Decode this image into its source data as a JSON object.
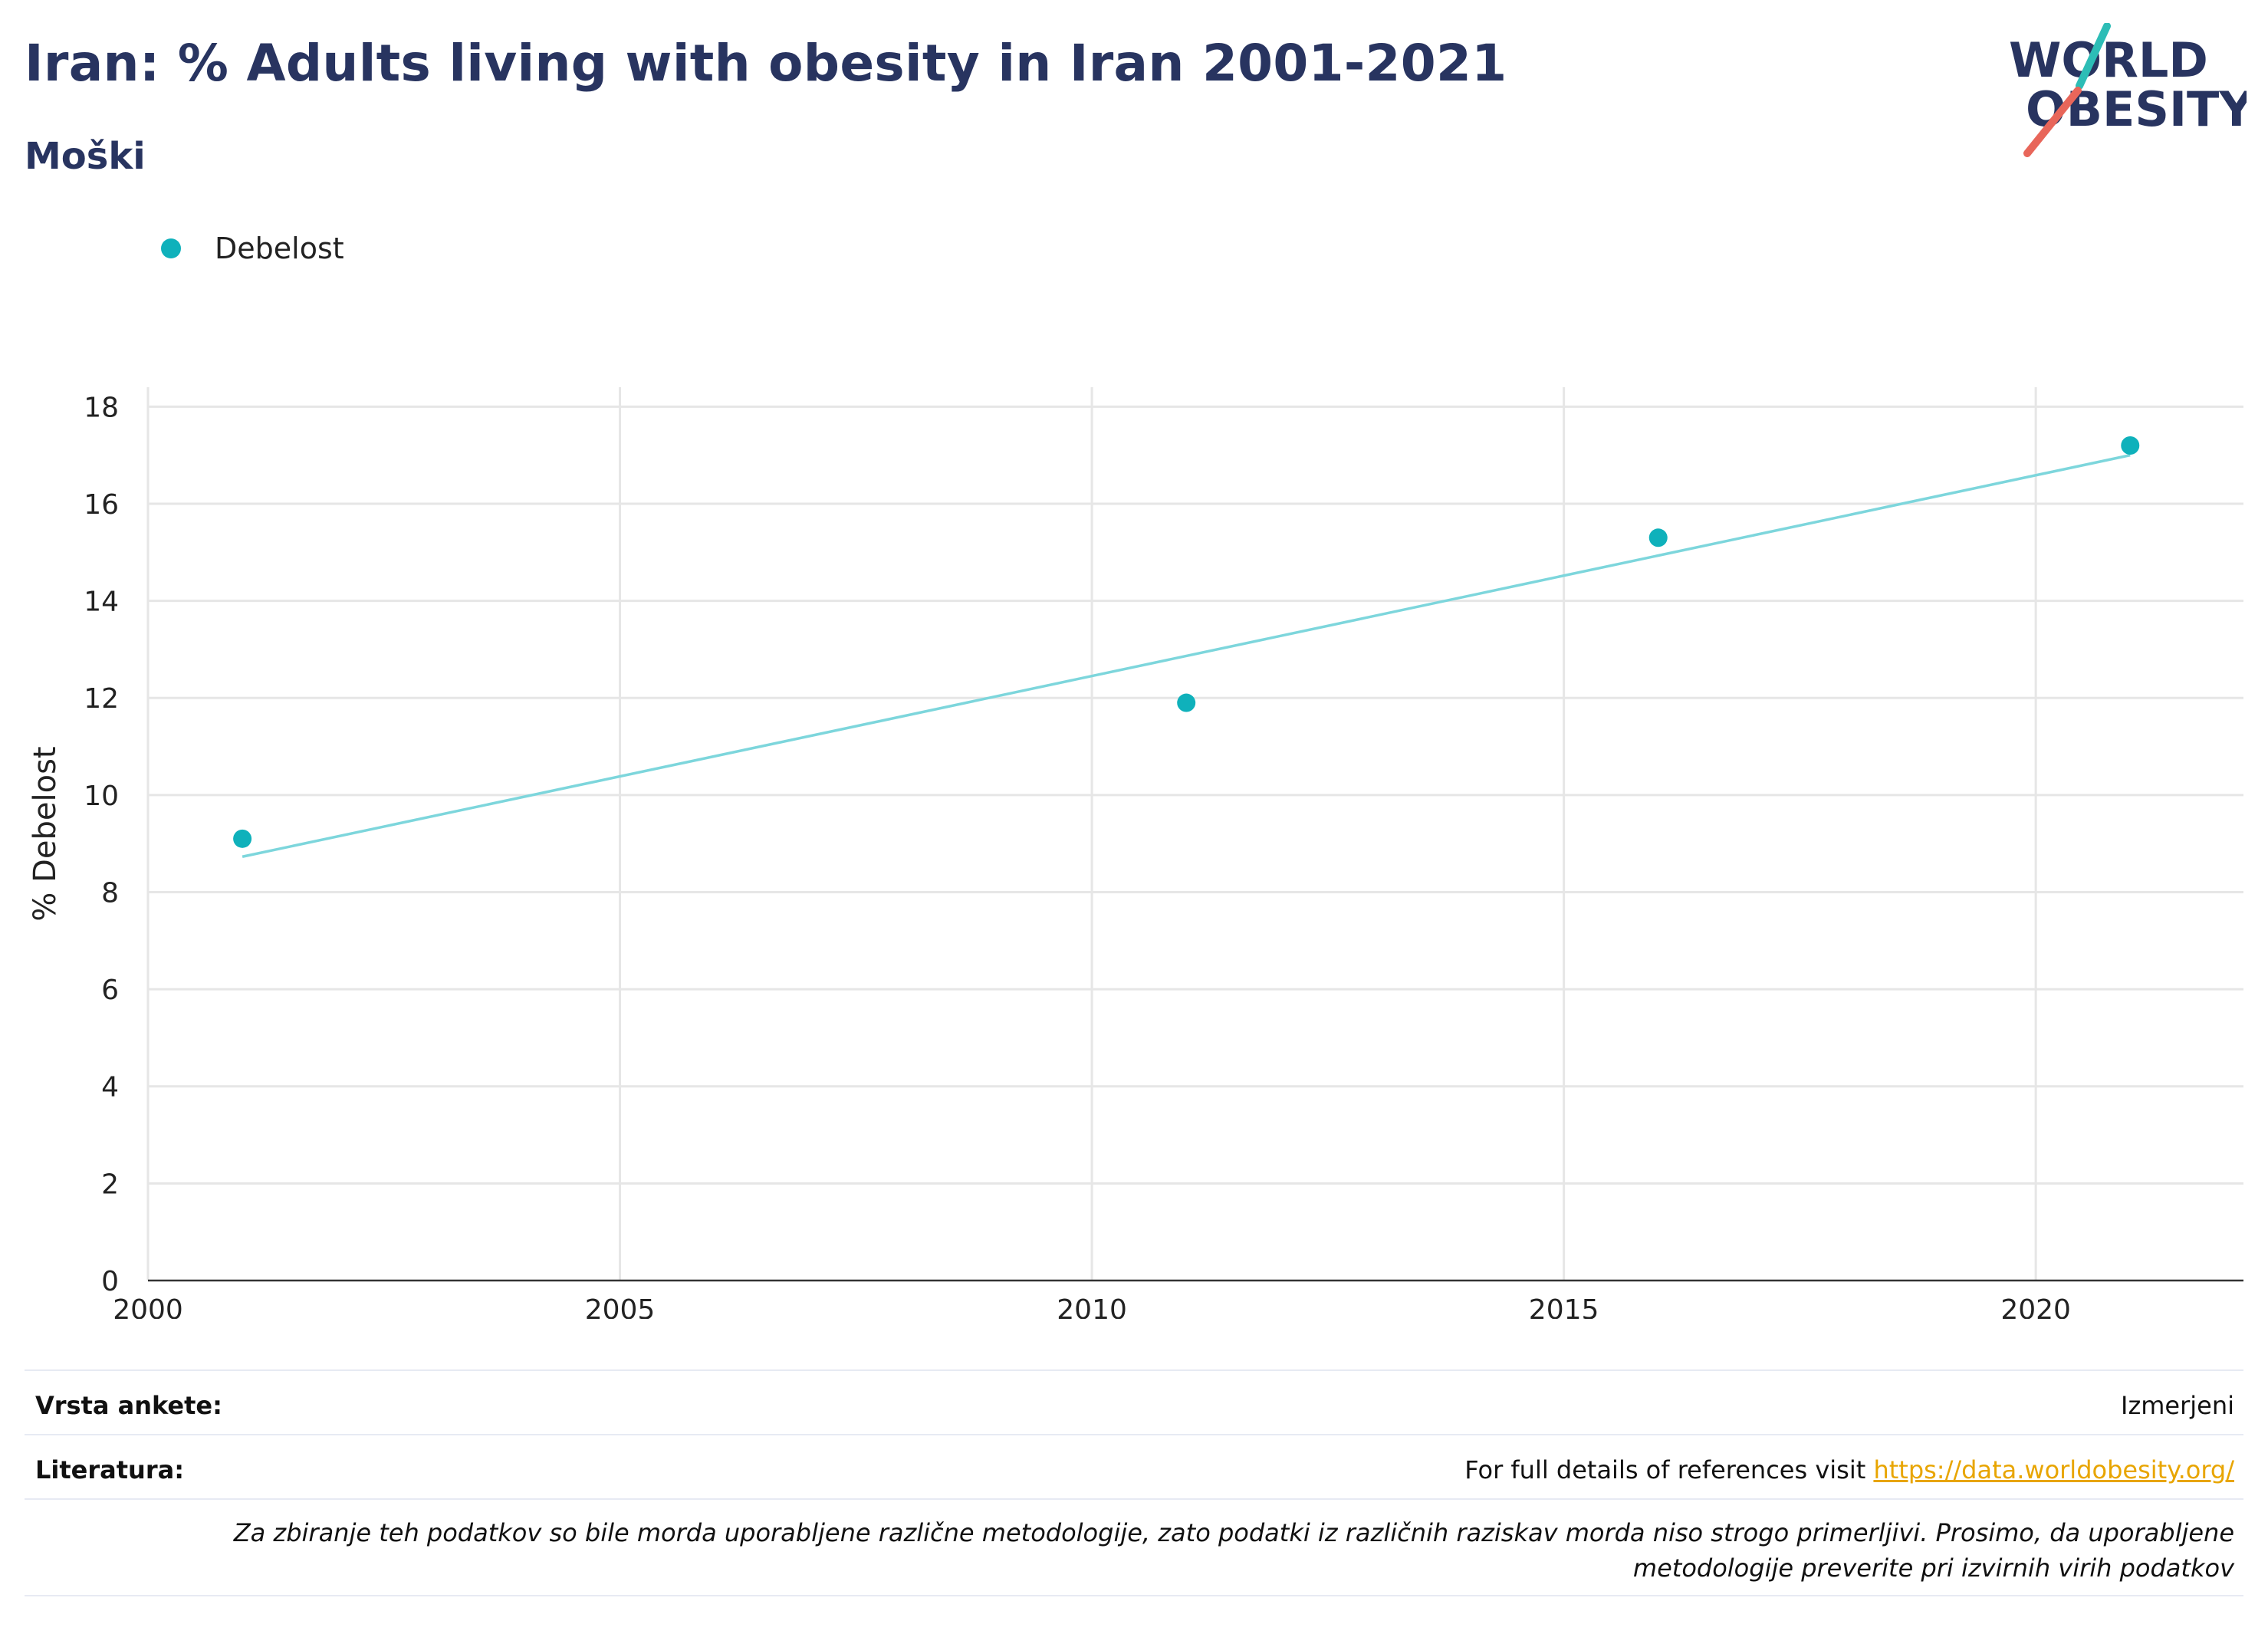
{
  "header": {
    "title": "Iran: % Adults living with obesity in Iran 2001-2021",
    "subtitle": "Moški"
  },
  "logo": {
    "line1": "WORLD",
    "line2": "OBESITY",
    "accent_teal": "#2dbdb6",
    "accent_red": "#e8665a",
    "text_color": "#283460"
  },
  "legend": {
    "series_label": "Debelost",
    "color": "#0fb1bb"
  },
  "chart_data": {
    "type": "scatter",
    "ylabel": "% Debelost",
    "xlabel": "",
    "xlim": [
      2000,
      2022.2
    ],
    "ylim": [
      0,
      18.4
    ],
    "x_ticks": [
      2000,
      2005,
      2010,
      2015,
      2020
    ],
    "y_ticks": [
      0,
      2,
      4,
      6,
      8,
      10,
      12,
      14,
      16,
      18
    ],
    "grid": true,
    "legend_position": "top-left",
    "series": [
      {
        "name": "Debelost",
        "color": "#0fb1bb",
        "points": [
          {
            "x": 2001,
            "y": 9.1
          },
          {
            "x": 2011,
            "y": 11.9
          },
          {
            "x": 2016,
            "y": 15.3
          },
          {
            "x": 2021,
            "y": 17.2
          }
        ]
      }
    ],
    "trendline": {
      "color": "#7dd6dc",
      "points": [
        {
          "x": 2001,
          "y": 8.73
        },
        {
          "x": 2021,
          "y": 17.0
        }
      ]
    }
  },
  "footer": {
    "survey_type_label": "Vrsta ankete:",
    "survey_type_value": "Izmerjeni",
    "references_label": "Literatura:",
    "references_text": "For full details of references visit ",
    "references_link": "https://data.worldobesity.org/",
    "disclaimer": "Za zbiranje teh podatkov so bile morda uporabljene različne metodologije, zato podatki iz različnih raziskav morda niso strogo primerljivi. Prosimo, da uporabljene metodologije preverite pri izvirnih virih podatkov"
  }
}
